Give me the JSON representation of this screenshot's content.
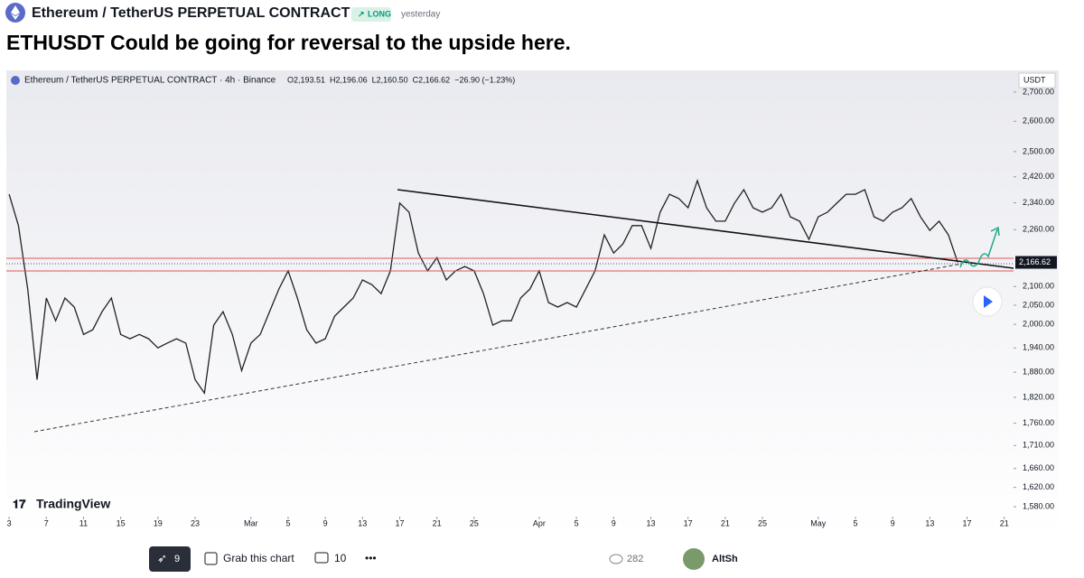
{
  "header": {
    "symbol": "Ethereum / TetherUS PERPETUAL CONTRACT",
    "badge": "LONG",
    "time": "yesterday",
    "title": "ETHUSDT Could be going for reversal to the upside here."
  },
  "chart_data": {
    "type": "line",
    "title": "Ethereum / TetherUS PERPETUAL CONTRACT · 4h · Binance",
    "ohlc": [
      "O2,193.51",
      "H2,196.06",
      "L2,160.50",
      "C2,166.62",
      "−26.90 (−1.23%)"
    ],
    "y_unit": "USDT",
    "watermark": "TradingView",
    "log_scale": true,
    "grid": false,
    "x": [
      0,
      1,
      2,
      3,
      4,
      5,
      6,
      7,
      8,
      9,
      10,
      11,
      12,
      13,
      14,
      15,
      16,
      17,
      18,
      19,
      20,
      21,
      22,
      23,
      24,
      25,
      26,
      27,
      28,
      29,
      30,
      31,
      32,
      33,
      34,
      35,
      36,
      37,
      38,
      39,
      40,
      41,
      42,
      43,
      44,
      45,
      46,
      47,
      48,
      49,
      50,
      51,
      52,
      53,
      54,
      55,
      56,
      57,
      58,
      59,
      60,
      61,
      62,
      63,
      64,
      65,
      66,
      67,
      68,
      69,
      70,
      71,
      72,
      73,
      74,
      75,
      76,
      77,
      78,
      79,
      80,
      81,
      82,
      83,
      84,
      85,
      86,
      87,
      88,
      89,
      90,
      91,
      92,
      93,
      94,
      95,
      96,
      97,
      98,
      99,
      100,
      101,
      102
    ],
    "series": [
      {
        "name": "ETHUSDT",
        "color": "#222222",
        "values": [
          2366,
          2272,
          2093,
          1862,
          2069,
          2009,
          2069,
          2045,
          1974,
          1986,
          2033,
          2069,
          1974,
          1963,
          1974,
          1963,
          1940,
          1952,
          1963,
          1952,
          1862,
          1830,
          1998,
          2033,
          1974,
          1884,
          1952,
          1974,
          2033,
          2093,
          2143,
          2069,
          1986,
          1952,
          1963,
          2021,
          2045,
          2069,
          2118,
          2105,
          2081,
          2143,
          2339,
          2312,
          2193,
          2143,
          2180,
          2118,
          2143,
          2155,
          2143,
          2081,
          1998,
          2009,
          2009,
          2069,
          2093,
          2143,
          2057,
          2045,
          2057,
          2045,
          2093,
          2143,
          2245,
          2193,
          2219,
          2272,
          2272,
          2206,
          2312,
          2366,
          2353,
          2325,
          2408,
          2325,
          2285,
          2285,
          2339,
          2380,
          2325,
          2312,
          2325,
          2366,
          2298,
          2285,
          2232,
          2298,
          2312,
          2339,
          2366,
          2366,
          2380,
          2298,
          2285,
          2312,
          2325,
          2353,
          2298,
          2258,
          2285,
          2245,
          2166.62
        ],
        "last_value_label": "2,166.62"
      }
    ],
    "xlim": [
      -0.3,
      108
    ],
    "ylim": [
      1560,
      2770
    ],
    "xticks": [
      {
        "value": 0,
        "label": "3"
      },
      {
        "value": 4,
        "label": "7"
      },
      {
        "value": 8,
        "label": "11"
      },
      {
        "value": 12,
        "label": "15"
      },
      {
        "value": 16,
        "label": "19"
      },
      {
        "value": 20,
        "label": "23"
      },
      {
        "value": 26,
        "label": "Mar"
      },
      {
        "value": 30,
        "label": "5"
      },
      {
        "value": 34,
        "label": "9"
      },
      {
        "value": 38,
        "label": "13"
      },
      {
        "value": 42,
        "label": "17"
      },
      {
        "value": 46,
        "label": "21"
      },
      {
        "value": 50,
        "label": "25"
      },
      {
        "value": 57,
        "label": "Apr"
      },
      {
        "value": 61,
        "label": "5"
      },
      {
        "value": 65,
        "label": "9"
      },
      {
        "value": 69,
        "label": "13"
      },
      {
        "value": 73,
        "label": "17"
      },
      {
        "value": 77,
        "label": "21"
      },
      {
        "value": 81,
        "label": "25"
      },
      {
        "value": 87,
        "label": "May"
      },
      {
        "value": 91,
        "label": "5"
      },
      {
        "value": 95,
        "label": "9"
      },
      {
        "value": 99,
        "label": "13"
      },
      {
        "value": 103,
        "label": "17"
      },
      {
        "value": 107,
        "label": "21"
      }
    ],
    "yticks": [
      {
        "value": 2700,
        "label": "2,700.00"
      },
      {
        "value": 2600,
        "label": "2,600.00"
      },
      {
        "value": 2500,
        "label": "2,500.00"
      },
      {
        "value": 2420,
        "label": "2,420.00"
      },
      {
        "value": 2340,
        "label": "2,340.00"
      },
      {
        "value": 2260,
        "label": "2,260.00"
      },
      {
        "value": 2100,
        "label": "2,100.00"
      },
      {
        "value": 2050,
        "label": "2,050.00"
      },
      {
        "value": 2000,
        "label": "2,000.00"
      },
      {
        "value": 1940,
        "label": "1,940.00"
      },
      {
        "value": 1880,
        "label": "1,880.00"
      },
      {
        "value": 1820,
        "label": "1,820.00"
      },
      {
        "value": 1760,
        "label": "1,760.00"
      },
      {
        "value": 1710,
        "label": "1,710.00"
      },
      {
        "value": 1660,
        "label": "1,660.00"
      },
      {
        "value": 1620,
        "label": "1,620.00"
      },
      {
        "value": 1580,
        "label": "1,580.00"
      }
    ]
  },
  "footer": {
    "boosts": 9,
    "grab": "Grab this chart",
    "comments": 10,
    "views": 282,
    "author": "AltSh"
  }
}
